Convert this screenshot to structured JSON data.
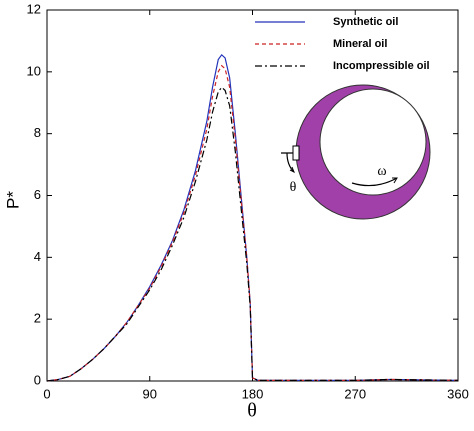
{
  "chart_data": {
    "type": "line",
    "x_label": "θ",
    "y_label": "P*",
    "x": [
      0,
      10,
      20,
      30,
      40,
      50,
      60,
      70,
      80,
      90,
      100,
      110,
      120,
      130,
      140,
      145,
      150,
      153,
      156,
      160,
      165,
      170,
      175,
      178,
      180,
      185,
      270,
      300,
      360
    ],
    "series": [
      {
        "name": "Synthetic oil",
        "color": "#2233bb",
        "dash": "solid",
        "values": [
          0,
          0.05,
          0.15,
          0.4,
          0.7,
          1.05,
          1.45,
          1.9,
          2.45,
          3.05,
          3.75,
          4.55,
          5.55,
          6.8,
          8.4,
          9.5,
          10.4,
          10.55,
          10.45,
          9.8,
          8.0,
          6.0,
          4.0,
          2.5,
          0.1,
          0.02,
          0.02,
          0.05,
          0.02
        ]
      },
      {
        "name": "Mineral oil",
        "color": "#cc2222",
        "dash": "dashed",
        "values": [
          0,
          0.05,
          0.15,
          0.4,
          0.7,
          1.05,
          1.45,
          1.9,
          2.45,
          3.0,
          3.7,
          4.5,
          5.45,
          6.65,
          8.15,
          9.2,
          10.0,
          10.2,
          10.1,
          9.5,
          7.8,
          5.9,
          4.0,
          2.5,
          0.1,
          0.02,
          0.02,
          0.05,
          0.02
        ]
      },
      {
        "name": "Incompressible oil",
        "color": "#000000",
        "dash": "dashdot",
        "values": [
          0,
          0.05,
          0.15,
          0.4,
          0.7,
          1.05,
          1.45,
          1.85,
          2.4,
          2.95,
          3.6,
          4.4,
          5.3,
          6.45,
          7.8,
          8.7,
          9.35,
          9.5,
          9.4,
          8.9,
          7.4,
          5.6,
          3.8,
          2.4,
          0.1,
          0.02,
          0.02,
          0.05,
          0.02
        ]
      }
    ],
    "xlim": [
      0,
      360
    ],
    "xticks": [
      0,
      90,
      180,
      270,
      360
    ],
    "ylim": [
      0,
      12
    ],
    "yticks": [
      0,
      2,
      4,
      6,
      8,
      10,
      12
    ],
    "legend": "upper right",
    "annotations": {
      "theta": "θ",
      "omega": "ω"
    }
  }
}
